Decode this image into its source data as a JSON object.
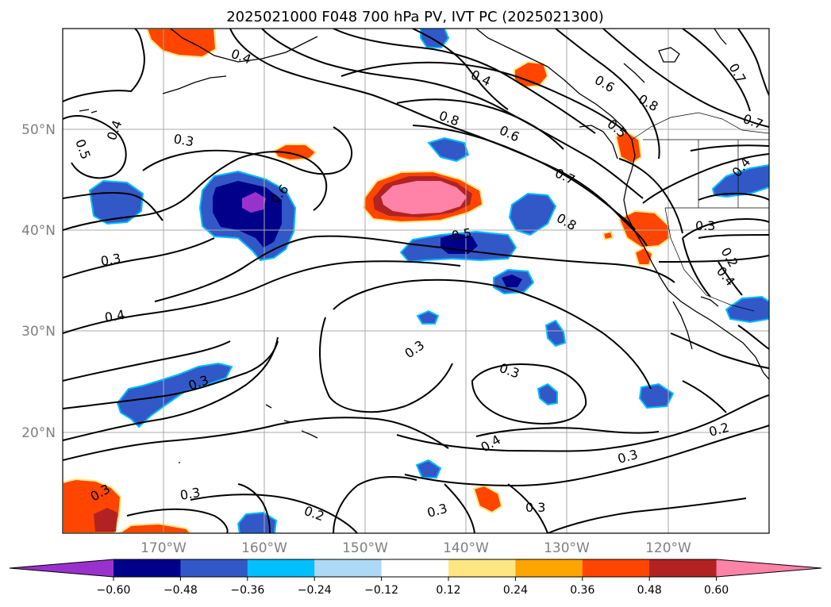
{
  "title": "2025021000 F048 700 hPa PV, IVT PC (2025021300)",
  "map": {
    "lat_labels": [
      "50°N",
      "40°N",
      "30°N",
      "20°N"
    ],
    "lon_labels": [
      "170°W",
      "160°W",
      "150°W",
      "140°W",
      "130°W",
      "120°W"
    ],
    "contour_labels": [
      "0.4",
      "0.5",
      "0.4",
      "0.3",
      "0.6",
      "0.8",
      "0.4",
      "0.6",
      "0.7",
      "0.6",
      "0.8",
      "0.7",
      "0.7",
      "0.8",
      "0.5",
      "0.3",
      "0.3",
      "0.4",
      "0.3",
      "0.3",
      "0.4",
      "0.3",
      "0.2",
      "0.3",
      "0.3",
      "0.3",
      "0.2",
      "0.3",
      "0.3",
      "0.4",
      "0.2",
      "0.4",
      "0.5"
    ]
  },
  "colorbar": {
    "tick_labels": [
      "−0.60",
      "−0.48",
      "−0.36",
      "−0.24",
      "−0.12",
      "0.12",
      "0.24",
      "0.36",
      "0.48",
      "0.60"
    ],
    "colors": [
      "#9932cc",
      "#00008b",
      "#3258c8",
      "#00bfff",
      "#add8f6",
      "#ffffff",
      "#ffe680",
      "#ffa500",
      "#ff4500",
      "#b22222",
      "#ff82a9",
      "#ff82a9"
    ],
    "extend": "both"
  }
}
